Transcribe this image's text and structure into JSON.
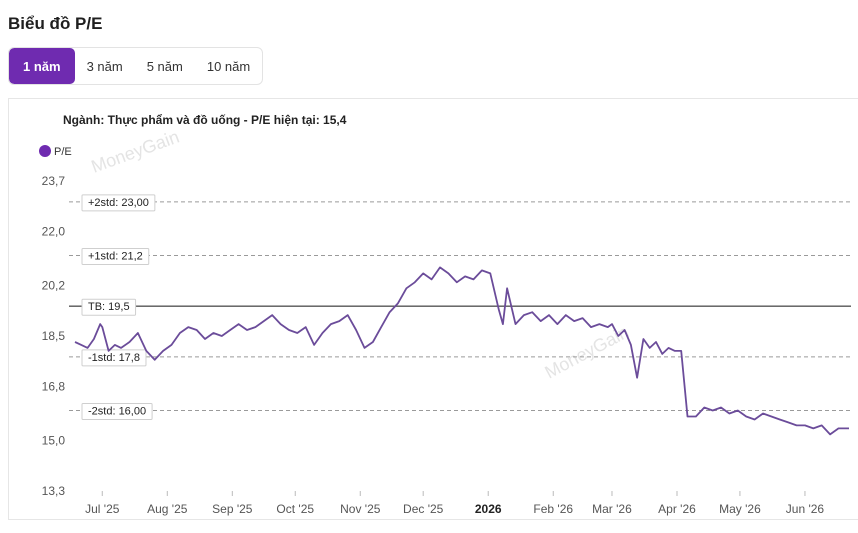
{
  "page": {
    "title": "Biểu đồ P/E"
  },
  "tabs": [
    {
      "label": "1 năm",
      "active": true
    },
    {
      "label": "3 năm",
      "active": false
    },
    {
      "label": "5 năm",
      "active": false
    },
    {
      "label": "10 năm",
      "active": false
    }
  ],
  "colors": {
    "accent": "#6f2bb0",
    "line": "#6b4c9a",
    "mean_line": "#555555",
    "std_line": "#9a9a9a"
  },
  "watermark": "MoneyGain",
  "chart_data": {
    "type": "line",
    "title": "Ngành: Thực phẩm và đồ uống - P/E hiện tại: 15,4",
    "legend": {
      "position": "top-left",
      "entries": [
        "P/E"
      ]
    },
    "ylim": [
      13.3,
      23.7
    ],
    "y_ticks": [
      "23,7",
      "22,0",
      "20,2",
      "18,5",
      "16,8",
      "15,0",
      "13,3"
    ],
    "y_tick_values": [
      23.7,
      22.0,
      20.2,
      18.5,
      16.8,
      15.0,
      13.3
    ],
    "x_ticks": [
      {
        "label": "Jul '25",
        "date": "2025-07-01",
        "bold": false
      },
      {
        "label": "Aug '25",
        "date": "2025-08-01",
        "bold": false
      },
      {
        "label": "Sep '25",
        "date": "2025-09-01",
        "bold": false
      },
      {
        "label": "Oct '25",
        "date": "2025-10-01",
        "bold": false
      },
      {
        "label": "Nov '25",
        "date": "2025-11-01",
        "bold": false
      },
      {
        "label": "Dec '25",
        "date": "2025-12-01",
        "bold": false
      },
      {
        "label": "2026",
        "date": "2026-01-01",
        "bold": true
      },
      {
        "label": "Feb '26",
        "date": "2026-02-01",
        "bold": false
      },
      {
        "label": "Mar '26",
        "date": "2026-03-01",
        "bold": false
      },
      {
        "label": "Apr '26",
        "date": "2026-04-01",
        "bold": false
      },
      {
        "label": "May '26",
        "date": "2026-05-01",
        "bold": false
      },
      {
        "label": "Jun '26",
        "date": "2026-06-01",
        "bold": false
      }
    ],
    "xlim": [
      "2025-06-18",
      "2026-06-22"
    ],
    "bands": [
      {
        "label": "+2std: 23,00",
        "value": 23.0,
        "style": "dashed"
      },
      {
        "label": "+1std: 21,2",
        "value": 21.2,
        "style": "dashed"
      },
      {
        "label": "TB: 19,5",
        "value": 19.5,
        "style": "solid"
      },
      {
        "label": "-1std: 17,8",
        "value": 17.8,
        "style": "dashed"
      },
      {
        "label": "-2std: 16,00",
        "value": 16.0,
        "style": "dashed"
      }
    ],
    "series": [
      {
        "name": "P/E",
        "x": [
          "2025-06-18",
          "2025-06-21",
          "2025-06-24",
          "2025-06-27",
          "2025-06-30",
          "2025-07-01",
          "2025-07-04",
          "2025-07-07",
          "2025-07-10",
          "2025-07-14",
          "2025-07-18",
          "2025-07-22",
          "2025-07-26",
          "2025-07-30",
          "2025-08-03",
          "2025-08-07",
          "2025-08-11",
          "2025-08-15",
          "2025-08-19",
          "2025-08-23",
          "2025-08-27",
          "2025-08-31",
          "2025-09-04",
          "2025-09-08",
          "2025-09-12",
          "2025-09-16",
          "2025-09-20",
          "2025-09-24",
          "2025-09-28",
          "2025-10-02",
          "2025-10-06",
          "2025-10-10",
          "2025-10-14",
          "2025-10-18",
          "2025-10-22",
          "2025-10-26",
          "2025-10-30",
          "2025-11-03",
          "2025-11-07",
          "2025-11-11",
          "2025-11-15",
          "2025-11-19",
          "2025-11-23",
          "2025-11-27",
          "2025-12-01",
          "2025-12-05",
          "2025-12-09",
          "2025-12-13",
          "2025-12-17",
          "2025-12-21",
          "2025-12-25",
          "2025-12-29",
          "2026-01-02",
          "2026-01-06",
          "2026-01-08",
          "2026-01-10",
          "2026-01-14",
          "2026-01-18",
          "2026-01-22",
          "2026-01-26",
          "2026-01-30",
          "2026-02-03",
          "2026-02-07",
          "2026-02-11",
          "2026-02-15",
          "2026-02-19",
          "2026-02-23",
          "2026-02-27",
          "2026-03-01",
          "2026-03-04",
          "2026-03-07",
          "2026-03-10",
          "2026-03-13",
          "2026-03-16",
          "2026-03-19",
          "2026-03-22",
          "2026-03-25",
          "2026-03-28",
          "2026-03-31",
          "2026-04-03",
          "2026-04-06",
          "2026-04-10",
          "2026-04-14",
          "2026-04-18",
          "2026-04-22",
          "2026-04-26",
          "2026-04-30",
          "2026-05-04",
          "2026-05-08",
          "2026-05-12",
          "2026-05-16",
          "2026-05-20",
          "2026-05-24",
          "2026-05-28",
          "2026-06-01",
          "2026-06-05",
          "2026-06-09",
          "2026-06-13",
          "2026-06-17",
          "2026-06-22"
        ],
        "values": [
          18.3,
          18.2,
          18.1,
          18.4,
          18.9,
          18.8,
          18.0,
          18.2,
          18.1,
          18.3,
          18.6,
          18.0,
          17.7,
          18.0,
          18.2,
          18.6,
          18.8,
          18.7,
          18.4,
          18.6,
          18.5,
          18.7,
          18.9,
          18.7,
          18.8,
          19.0,
          19.2,
          18.9,
          18.7,
          18.6,
          18.8,
          18.2,
          18.6,
          18.9,
          19.0,
          19.2,
          18.7,
          18.1,
          18.3,
          18.8,
          19.3,
          19.6,
          20.1,
          20.3,
          20.6,
          20.4,
          20.8,
          20.6,
          20.3,
          20.5,
          20.4,
          20.7,
          20.6,
          19.4,
          18.9,
          20.1,
          18.9,
          19.2,
          19.3,
          19.0,
          19.2,
          18.9,
          19.2,
          19.0,
          19.1,
          18.8,
          18.9,
          18.8,
          18.9,
          18.5,
          18.7,
          18.2,
          17.1,
          18.4,
          18.1,
          18.3,
          17.9,
          18.1,
          18.0,
          18.0,
          15.8,
          15.8,
          16.1,
          16.0,
          16.1,
          15.9,
          16.0,
          15.8,
          15.7,
          15.9,
          15.8,
          15.7,
          15.6,
          15.5,
          15.5,
          15.4,
          15.5,
          15.2,
          15.4,
          15.4
        ]
      }
    ]
  }
}
